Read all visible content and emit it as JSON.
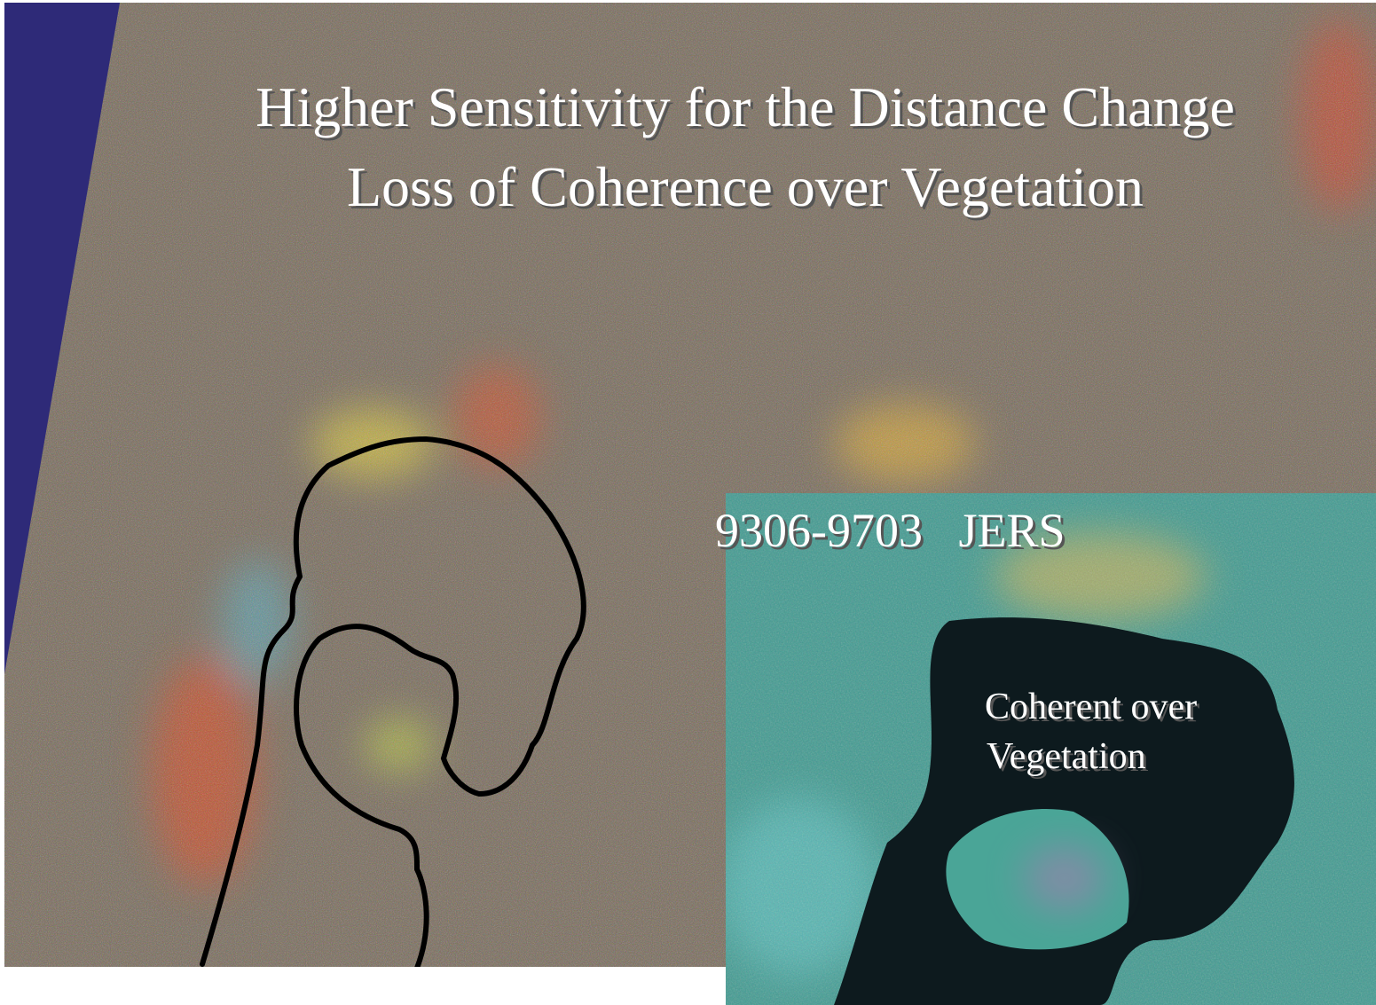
{
  "slide": {
    "title_lines": [
      "Higher Sensitivity for the Distance Change",
      "Loss of Coherence over Vegetation"
    ],
    "inset": {
      "label": "9306-9703   JERS",
      "annotation_lines": [
        "Coherent over",
        "Vegetation"
      ]
    }
  }
}
